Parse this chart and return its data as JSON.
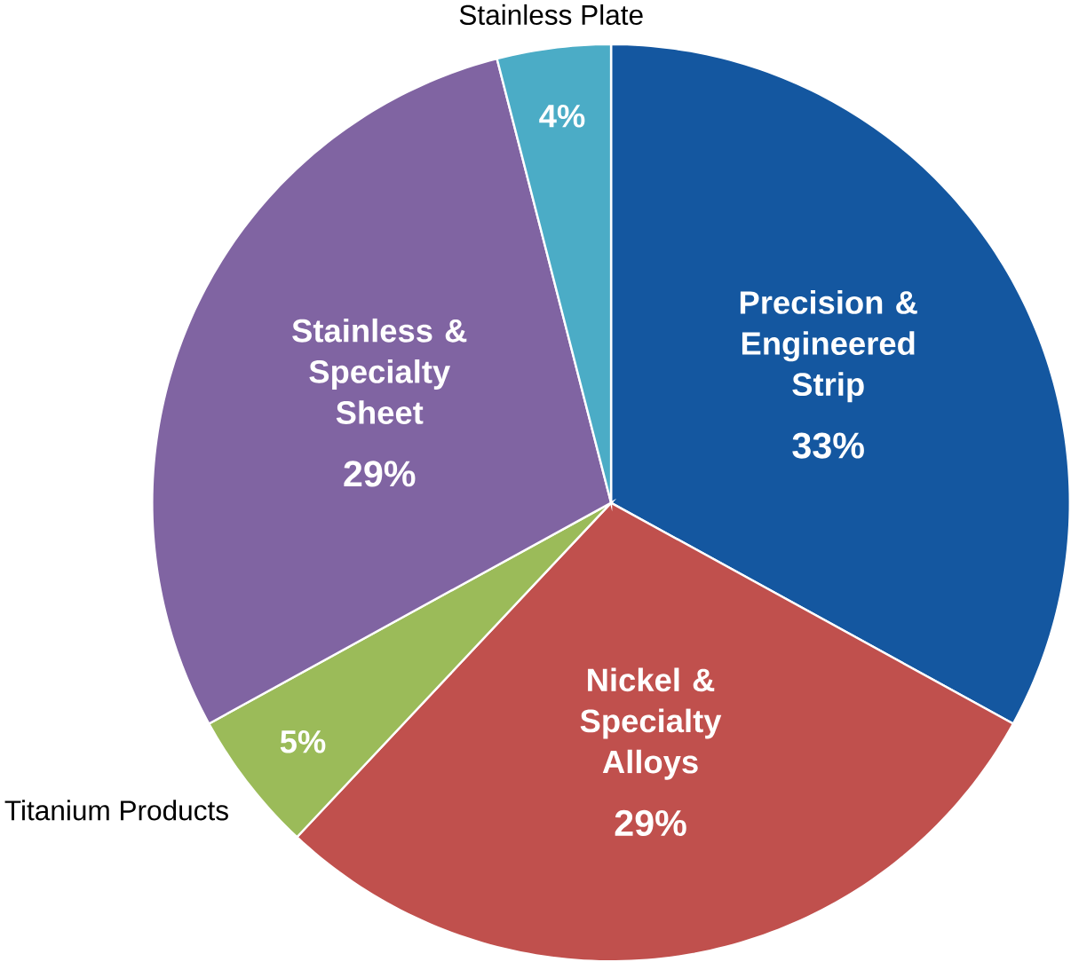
{
  "chart_data": {
    "type": "pie",
    "categories": [
      "Precision & Engineered Strip",
      "Nickel & Specialty Alloys",
      "Titanium Products",
      "Stainless & Specialty Sheet",
      "Stainless Plate"
    ],
    "values": [
      33,
      29,
      5,
      29,
      4
    ],
    "value_labels": [
      "33%",
      "29%",
      "5%",
      "29%",
      "4%"
    ],
    "colors": [
      "#1457a0",
      "#c0504d",
      "#9bbb59",
      "#8064a2",
      "#4bacc6"
    ]
  }
}
